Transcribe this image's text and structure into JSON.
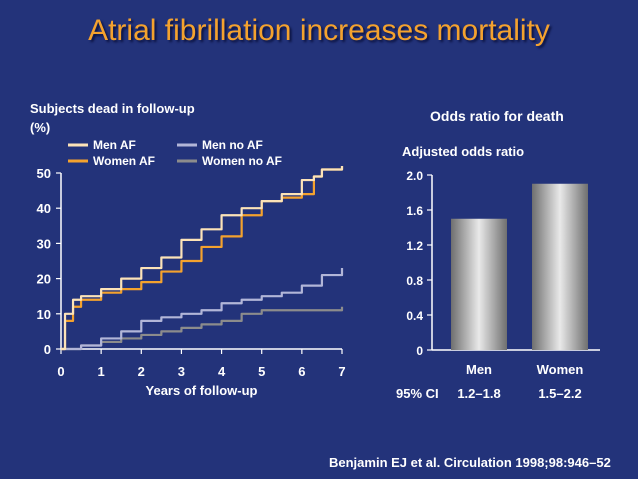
{
  "title": "Atrial fibrillation increases mortality",
  "left_ylabel_line1": "Subjects dead in follow-up",
  "left_ylabel_line2": "(%)",
  "right_title": "Odds ratio for death",
  "right_ylabel": "Adjusted odds ratio",
  "ci_label": "95% CI",
  "citation": "Benjamin EJ et al. Circulation 1998;98:946–52",
  "colors": {
    "background": "#23337a",
    "title": "#f4a22e",
    "men_af": "#fce3b8",
    "women_af": "#f4a22e",
    "men_no_af": "#b2b6d8",
    "women_no_af": "#8c8c8c"
  },
  "chart_data": [
    {
      "type": "line",
      "ylabel": "Subjects dead in follow-up (%)",
      "xlabel": "Years of follow-up",
      "xlim": [
        0,
        7
      ],
      "ylim": [
        0,
        50
      ],
      "xticks": [
        "0",
        "1",
        "2",
        "3",
        "4",
        "5",
        "6",
        "7"
      ],
      "yticks": [
        "0",
        "10",
        "20",
        "30",
        "40",
        "50"
      ],
      "legend": "top-left",
      "series": [
        {
          "name": "Men AF",
          "color": "#fce3b8",
          "x": [
            0,
            0.1,
            0.3,
            0.5,
            1,
            1.5,
            2,
            2.5,
            3,
            3.5,
            4,
            4.5,
            5,
            5.5,
            6,
            6.3,
            6.5,
            7
          ],
          "y": [
            0,
            10,
            14,
            15,
            17,
            20,
            23,
            26,
            31,
            34,
            38,
            40,
            42,
            44,
            48,
            49,
            51,
            52
          ]
        },
        {
          "name": "Women AF",
          "color": "#f4a22e",
          "x": [
            0,
            0.1,
            0.3,
            0.5,
            1,
            1.5,
            2,
            2.5,
            3,
            3.5,
            4,
            4.5,
            5,
            5.5,
            6,
            6.3,
            6.5,
            7
          ],
          "y": [
            0,
            8,
            12,
            14,
            16,
            17,
            19,
            22,
            25,
            29,
            32,
            38,
            42,
            43,
            44,
            49,
            51,
            52
          ]
        },
        {
          "name": "Men no AF",
          "color": "#b2b6d8",
          "x": [
            0,
            0.5,
            1,
            1.5,
            2,
            2.5,
            3,
            3.5,
            4,
            4.5,
            5,
            5.5,
            6,
            6.5,
            7
          ],
          "y": [
            0,
            1,
            3,
            5,
            8,
            9,
            10,
            11,
            13,
            14,
            15,
            16,
            18,
            21,
            23
          ]
        },
        {
          "name": "Women no AF",
          "color": "#8c8c8c",
          "x": [
            0,
            0.5,
            1,
            1.5,
            2,
            2.5,
            3,
            3.5,
            4,
            4.5,
            5,
            5.5,
            6,
            6.5,
            7
          ],
          "y": [
            0,
            1,
            2,
            3,
            4,
            5,
            6,
            7,
            8,
            10,
            11,
            11,
            11,
            11,
            12
          ]
        }
      ]
    },
    {
      "type": "bar",
      "title": "Odds ratio for death",
      "ylabel": "Adjusted odds ratio",
      "ylim": [
        0,
        2.0
      ],
      "yticks": [
        "0",
        "0.4",
        "0.8",
        "1.2",
        "1.6",
        "2.0"
      ],
      "categories": [
        "Men",
        "Women"
      ],
      "values": [
        1.5,
        1.9
      ],
      "ci": [
        "1.2–1.8",
        "1.5–2.2"
      ]
    }
  ]
}
